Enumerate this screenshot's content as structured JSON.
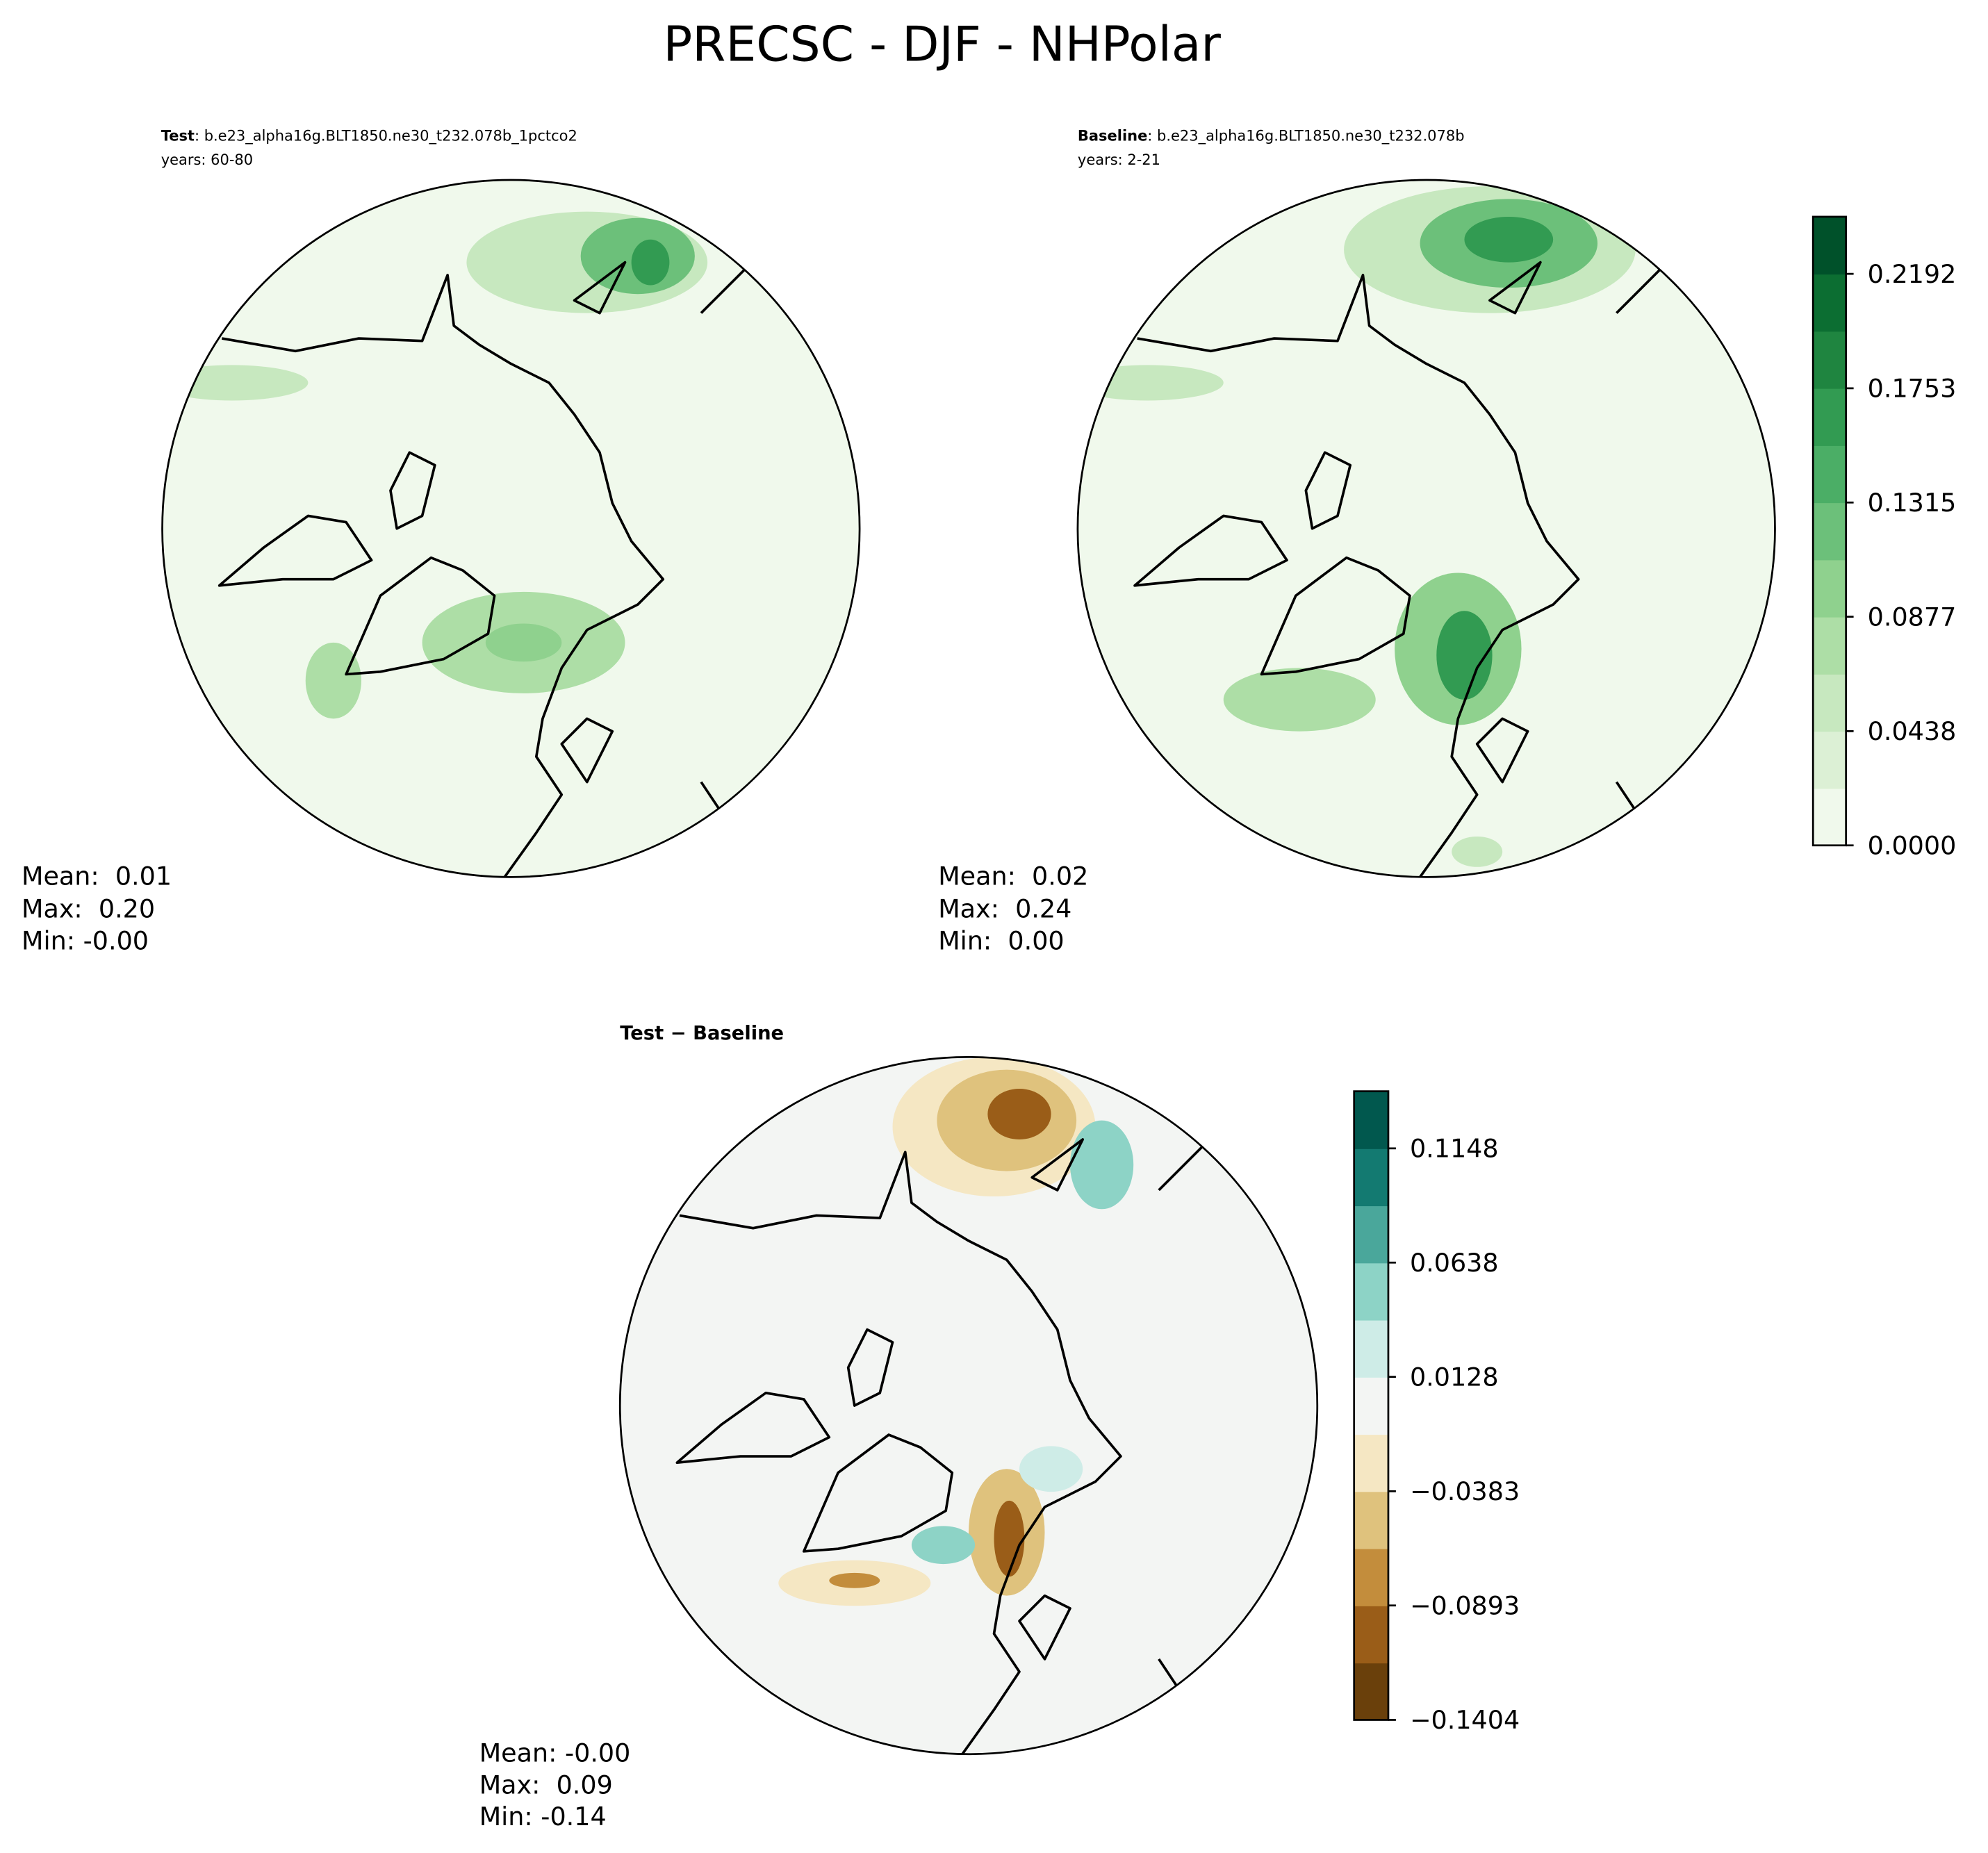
{
  "title": "PRECSC - DJF - NHPolar",
  "panels": [
    {
      "name": "Test",
      "case": ": b.e23_alpha16g.BLT1850.ne30_t232.078b_1pctco2",
      "years": "years: 60-80",
      "stats": [
        "Mean:  0.01",
        "Max:  0.20",
        "Min: -0.00"
      ]
    },
    {
      "name": "Baseline",
      "case": ": b.e23_alpha16g.BLT1850.ne30_t232.078b",
      "years": "years: 2-21",
      "stats": [
        "Mean:  0.02",
        "Max:  0.24",
        "Min:  0.00"
      ]
    },
    {
      "name": "Test − Baseline",
      "stats": [
        "Mean: -0.00",
        "Max:  0.09",
        "Min: -0.14"
      ]
    }
  ],
  "colorbars": [
    {
      "lim": [
        0,
        0.2411
      ],
      "ticks": [
        {
          "value": 0,
          "label": "0.0000"
        },
        0.0438,
        0.0877,
        0.1315,
        0.1753,
        0.2192
      ],
      "colors": [
        "#f0f9ec",
        "#dcf0d5",
        "#c7e8bf",
        "#addea6",
        "#8fd18e",
        "#6cc07a",
        "#4bae66",
        "#329b52",
        "#1f8540",
        "#0c6e32",
        "#00512a"
      ]
    },
    {
      "lim": [
        -0.1404,
        0.1403
      ],
      "ticks": [
        {
          "value": -0.1404,
          "label": "−0.1404"
        },
        {
          "value": -0.0893,
          "label": "−0.0893"
        },
        {
          "value": -0.0383,
          "label": "−0.0383"
        },
        0.0128,
        0.0638,
        0.1148
      ],
      "colors": [
        "#6a400b",
        "#9a5d18",
        "#c38d3c",
        "#dfc27d",
        "#f5e7c3",
        "#f3f5f3",
        "#ceece7",
        "#8dd3c6",
        "#4aa79b",
        "#137a71",
        "#01584e"
      ]
    }
  ]
}
